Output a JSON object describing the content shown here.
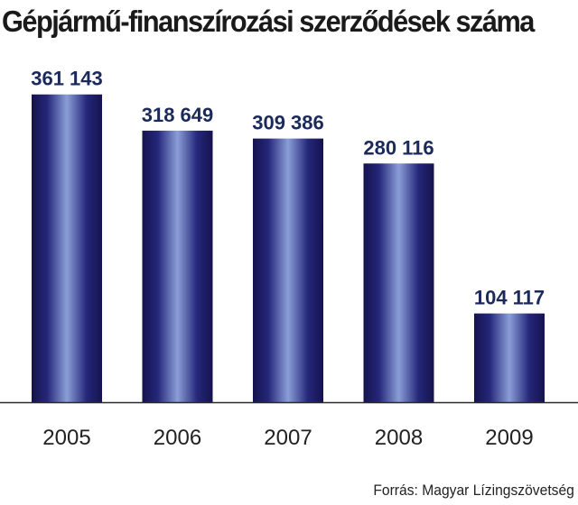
{
  "chart_data": {
    "type": "bar",
    "title": "Gépjármű-finanszírozási szerződések száma",
    "categories": [
      "2005",
      "2006",
      "2007",
      "2008",
      "2009"
    ],
    "values": [
      361143,
      318649,
      309386,
      280116,
      104117
    ],
    "value_labels": [
      "361 143",
      "318 649",
      "309 386",
      "280 116",
      "104 117"
    ],
    "ylim": [
      0,
      400000
    ],
    "grid": false,
    "legend": "none",
    "source": "Forrás: Magyar Lízingszövetség"
  },
  "colors": {
    "bar_dark": "#15134e",
    "bar_mid": "#25277a",
    "bar_light": "#8b9ed8",
    "value_text": "#1b2a5a",
    "tick_text": "#222222",
    "axis": "#2a2a2a"
  }
}
